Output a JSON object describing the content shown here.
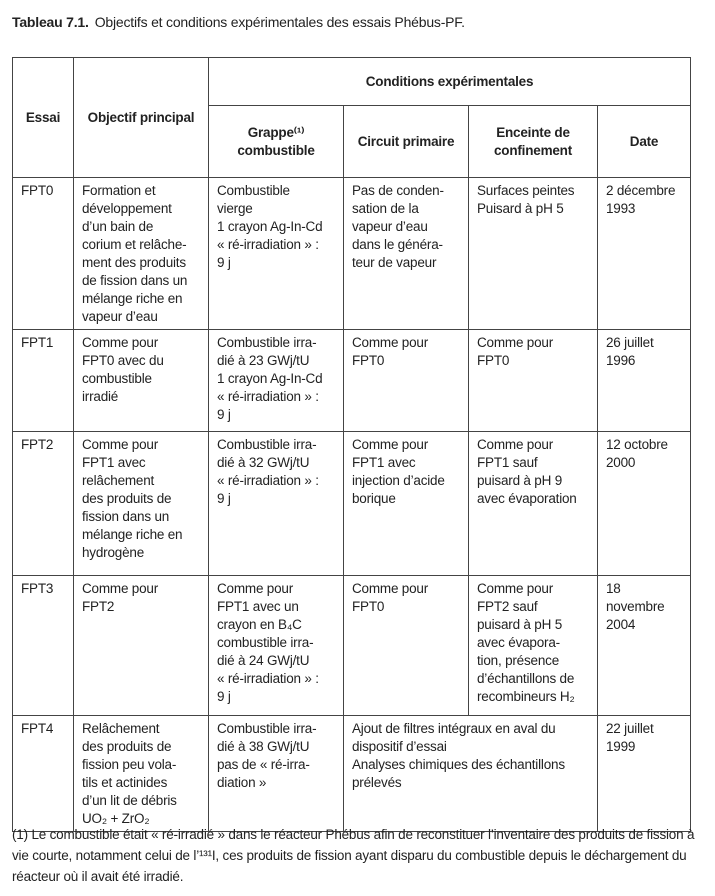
{
  "caption": {
    "label": "Tableau 7.1.",
    "text": "Objectifs et conditions expérimentales des essais Phébus-PF."
  },
  "headers": {
    "essai": "Essai",
    "objectif": "Objectif principal",
    "conditions": "Conditions expérimentales",
    "grappe": "Grappe⁽¹⁾\ncombustible",
    "circuit": "Circuit primaire",
    "enceinte": "Enceinte de\nconfinement",
    "date": "Date"
  },
  "rows": [
    {
      "essai": "FPT0",
      "objectif": "Formation et\ndéveloppement\nd’un bain de\ncorium et relâche-\nment des produits\nde fission dans un\nmélange riche en\nvapeur d’eau",
      "grappe": "Combustible\nvierge\n1 crayon Ag-In-Cd\n« ré-irradiation » :\n9 j",
      "circuit": "Pas de conden-\nsation de la\nvapeur d’eau\ndans le généra-\nteur de vapeur",
      "enceinte": "Surfaces peintes\nPuisard à pH 5",
      "date": "2 décembre\n1993"
    },
    {
      "essai": "FPT1",
      "objectif": "Comme pour\nFPT0 avec du\ncombustible\nirradié",
      "grappe": "Combustible irra-\ndié à 23 GWj/tU\n1 crayon Ag-In-Cd\n« ré-irradiation » :\n9 j",
      "circuit": "Comme pour\nFPT0",
      "enceinte": "Comme pour\nFPT0",
      "date": "26 juillet\n1996"
    },
    {
      "essai": "FPT2",
      "objectif": "Comme pour\nFPT1 avec\nrelâchement\ndes produits de\nfission dans un\nmélange riche en\nhydrogène",
      "grappe": "Combustible irra-\ndié à 32 GWj/tU\n« ré-irradiation » :\n9 j",
      "circuit": "Comme pour\nFPT1 avec\ninjection d’acide\nborique",
      "enceinte": "Comme pour\nFPT1 sauf\npuisard à pH 9\navec évaporation",
      "date": "12 octobre\n2000"
    },
    {
      "essai": "FPT3",
      "objectif": "Comme pour\nFPT2",
      "grappe": "Comme pour\nFPT1 avec un\ncrayon en B₄C\ncombustible irra-\ndié à 24 GWj/tU\n« ré-irradiation » :\n9 j",
      "circuit": "Comme pour\nFPT0",
      "enceinte": "Comme pour\nFPT2 sauf\npuisard à pH 5\navec évapora-\ntion, présence\nd’échantillons de\nrecombineurs H₂",
      "date": "18 novembre\n2004"
    },
    {
      "essai": "FPT4",
      "objectif": "Relâchement\ndes produits de\nfission peu vola-\ntils et actinides\nd’un lit de débris\nUO₂ + ZrO₂",
      "grappe": "Combustible irra-\ndié à 38 GWj/tU\npas de « ré-irra-\ndiation »",
      "circuit_enceinte": "Ajout de filtres intégraux en aval du\ndispositif d’essai\nAnalyses chimiques des échantillons\nprélevés",
      "date": "22 juillet\n1999"
    }
  ],
  "footnote": "(1) Le combustible était « ré-irradié » dans le réacteur Phébus afin de reconstituer l’inventaire des produits de fission à vie courte, notamment celui de l’¹³¹I, ces produits de fission ayant disparu du combustible depuis le déchargement du réacteur où il avait été irradié."
}
